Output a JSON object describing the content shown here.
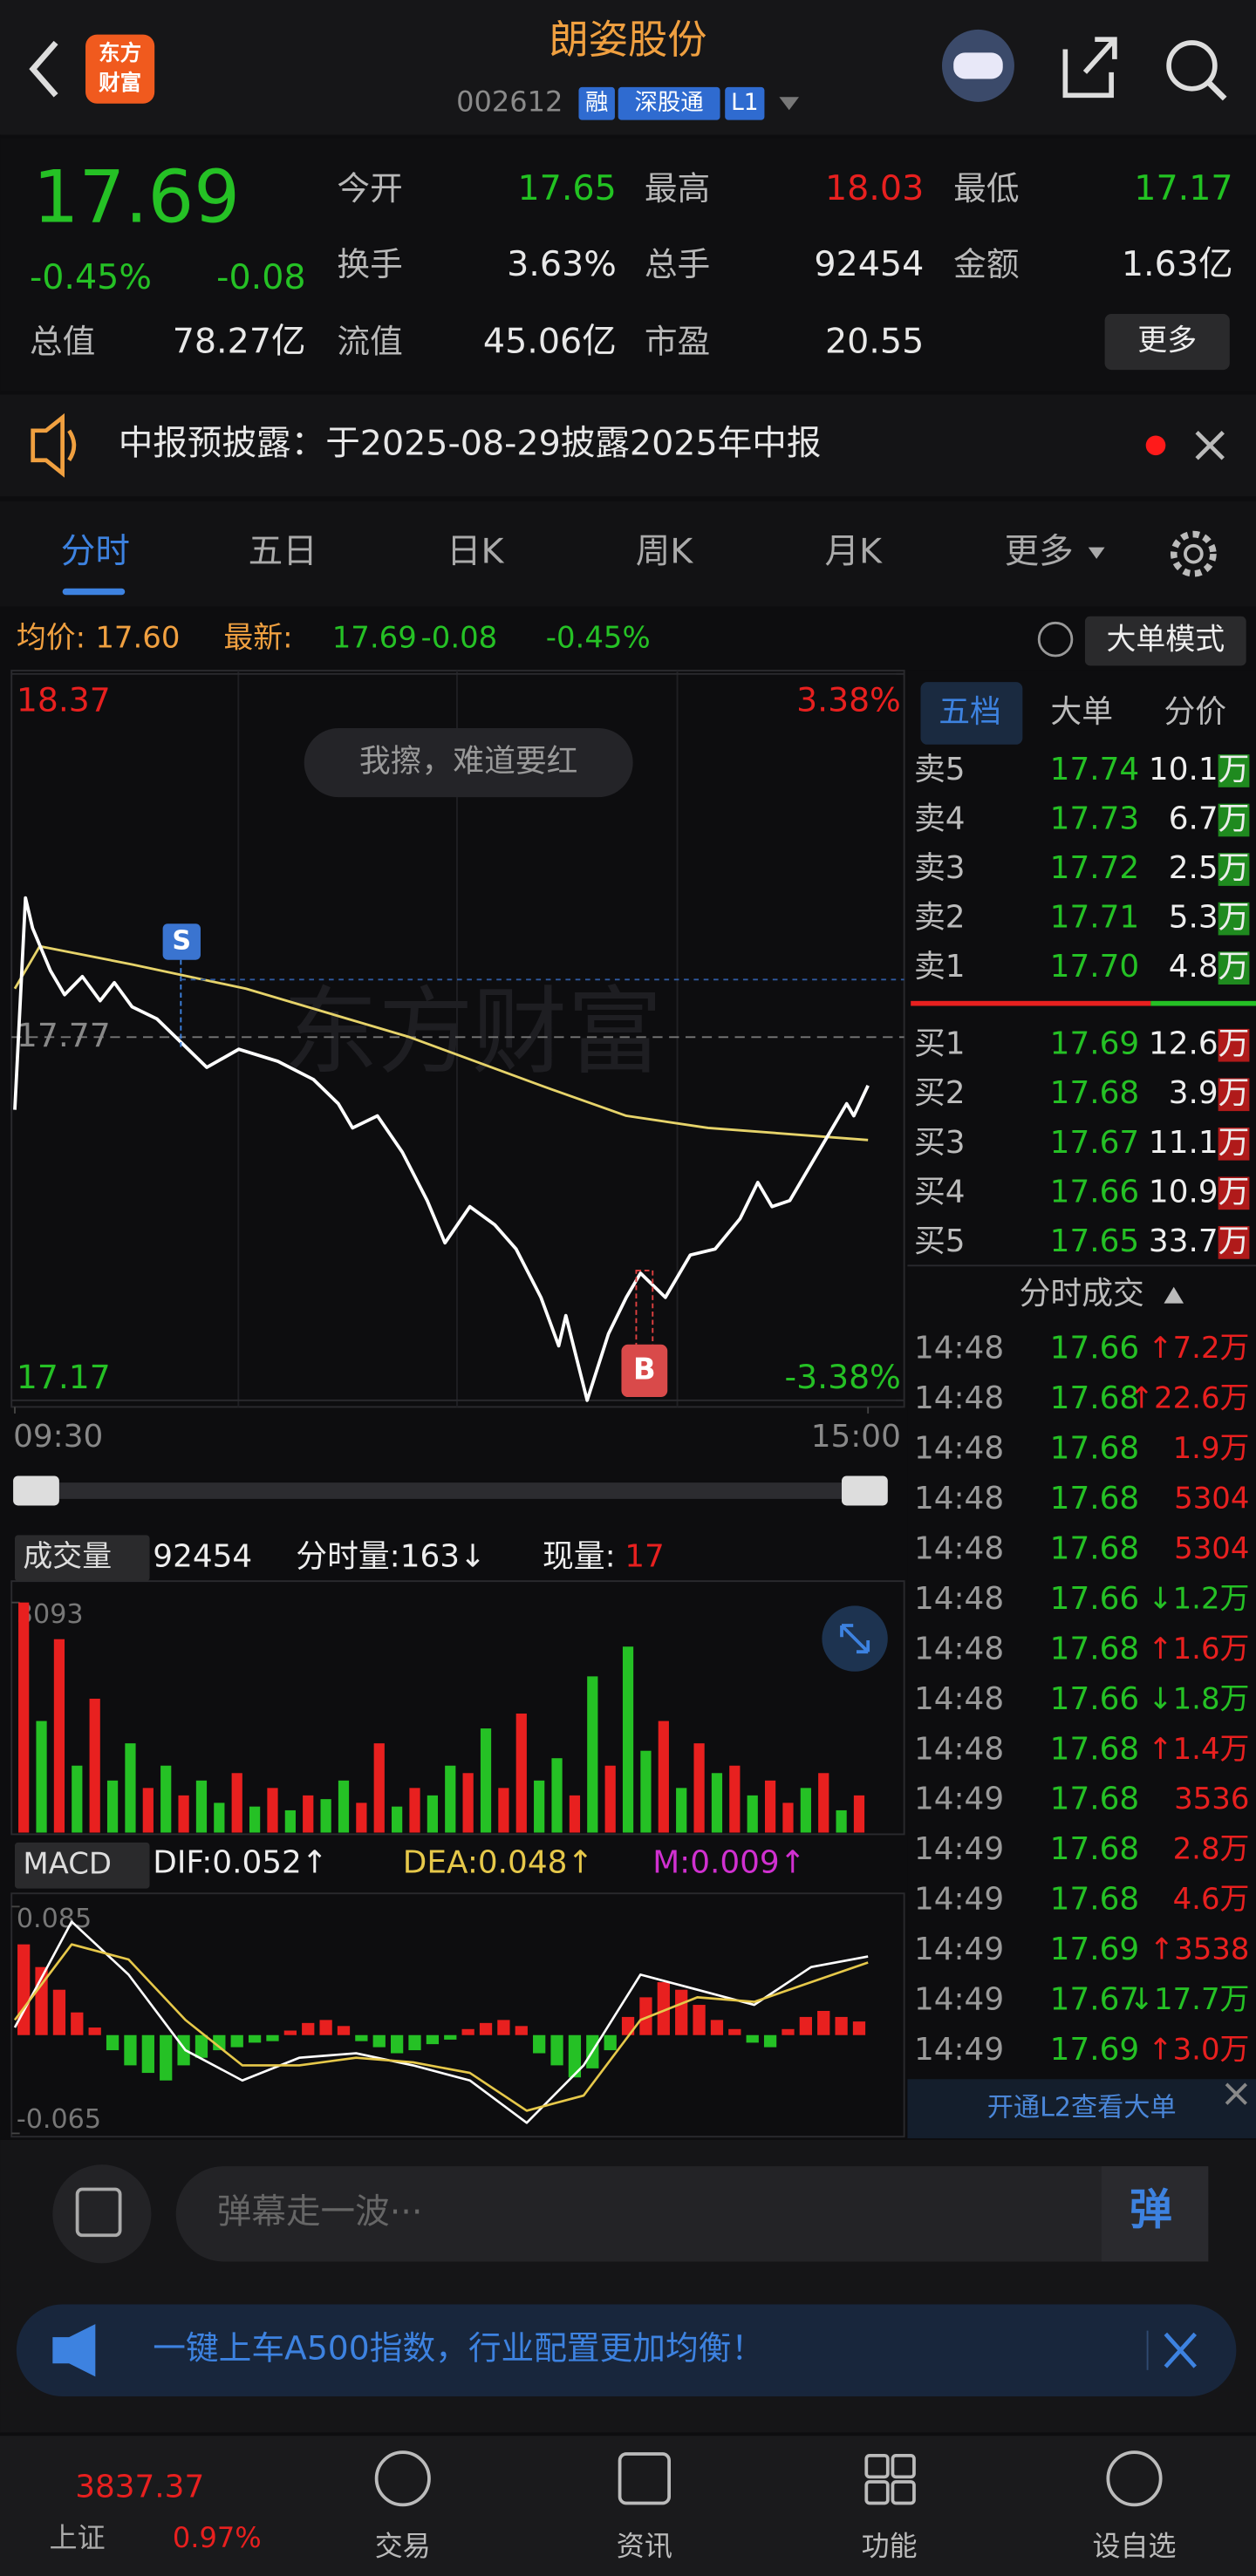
{
  "header": {
    "logo": [
      "东方",
      "财富"
    ],
    "title": "朗姿股份",
    "code": "002612",
    "badges": [
      "融",
      "深股通",
      "L1"
    ]
  },
  "quote": {
    "price": "17.69",
    "change_pct": "-0.45%",
    "change": "-0.08",
    "fields": [
      [
        {
          "label": "今开",
          "value": "17.65",
          "color": "#22c322"
        },
        {
          "label": "最高",
          "value": "18.03",
          "color": "#e8201f"
        },
        {
          "label": "最低",
          "value": "17.17",
          "color": "#22c322"
        }
      ],
      [
        {
          "label": "换手",
          "value": "3.63%"
        },
        {
          "label": "总手",
          "value": "92454"
        },
        {
          "label": "金额",
          "value": "1.63亿"
        }
      ],
      [
        {
          "label": "总值",
          "value": "78.27亿"
        },
        {
          "label": "流值",
          "value": "45.06亿"
        },
        {
          "label": "市盈",
          "value": "20.55"
        }
      ]
    ],
    "more": "更多"
  },
  "notice": "中报预披露：于2025-08-29披露2025年中报",
  "tabs": [
    "分时",
    "五日",
    "日K",
    "周K",
    "月K",
    "更多"
  ],
  "summary": {
    "avg_label": "均价:",
    "avg": "17.60",
    "latest_label": "最新:",
    "latest": "17.69",
    "change": "-0.08",
    "change_pct": "-0.45%",
    "mode": "大单模式"
  },
  "comment_bubble": "我擦，难道要红",
  "markers": {
    "sell": "S",
    "buy": "B"
  },
  "volume_header": {
    "menu": "成交量",
    "total": "92454",
    "minute": "分时量:163↓",
    "current_label": "现量:",
    "current": "17"
  },
  "macd_header": {
    "menu": "MACD",
    "dif": "DIF:0.052↑",
    "dea": "DEA:0.048↑",
    "m": "M:0.009↑"
  },
  "chart_data": [
    {
      "type": "line",
      "xlim": [
        0,
        240
      ],
      "xticks": [
        {
          "value": 0,
          "label": "09:30"
        },
        {
          "value": 240,
          "label": "15:00"
        }
      ],
      "ylim": [
        17.17,
        18.37
      ],
      "yticks": [
        18.37,
        17.77,
        17.17
      ],
      "y2lim": [
        -3.38,
        3.38
      ],
      "y2ticks": [
        {
          "value": 3.38,
          "label": "3.38%"
        },
        {
          "value": -3.38,
          "label": "-3.38%"
        }
      ],
      "series": [
        {
          "color": "#ffffff",
          "x": [
            0,
            3,
            5,
            10,
            14,
            19,
            24,
            28,
            33,
            40,
            47,
            54,
            63,
            74,
            84,
            91,
            95,
            102,
            109,
            116,
            121,
            128,
            135,
            141,
            148,
            153,
            155,
            161,
            167,
            172,
            176,
            183,
            190,
            197,
            204,
            209,
            213,
            218,
            225,
            229,
            234,
            236,
            240
          ],
          "values": [
            17.65,
            18.0,
            17.95,
            17.88,
            17.84,
            17.87,
            17.83,
            17.86,
            17.82,
            17.8,
            17.76,
            17.72,
            17.75,
            17.73,
            17.7,
            17.66,
            17.62,
            17.64,
            17.58,
            17.5,
            17.43,
            17.49,
            17.46,
            17.42,
            17.34,
            17.26,
            17.31,
            17.17,
            17.28,
            17.34,
            17.38,
            17.34,
            17.41,
            17.42,
            17.47,
            17.53,
            17.49,
            17.5,
            17.57,
            17.61,
            17.66,
            17.64,
            17.69
          ]
        },
        {
          "color": "#e6d36a",
          "x": [
            0,
            7,
            33,
            65,
            111,
            148,
            172,
            195,
            240
          ],
          "values": [
            17.85,
            17.92,
            17.89,
            17.85,
            17.77,
            17.69,
            17.64,
            17.62,
            17.6
          ]
        }
      ]
    },
    {
      "type": "bar",
      "ylim": [
        0,
        3093
      ],
      "yticks": [
        3093
      ],
      "values": [
        3093,
        1500,
        2600,
        900,
        1800,
        700,
        1200,
        600,
        900,
        500,
        700,
        400,
        800,
        350,
        600,
        300,
        500,
        450,
        700,
        400,
        1200,
        350,
        600,
        500,
        900,
        800,
        1400,
        600,
        1600,
        700,
        1000,
        500,
        2100,
        900,
        2500,
        1100,
        1500,
        600,
        1200,
        800,
        900,
        500,
        700,
        400,
        600,
        800,
        300,
        500
      ],
      "colors": [
        "#e8201f",
        "#25c125",
        "#e8201f",
        "#25c125",
        "#e8201f",
        "#25c125",
        "#25c125",
        "#e8201f",
        "#25c125",
        "#e8201f",
        "#25c125",
        "#25c125",
        "#e8201f",
        "#25c125",
        "#e8201f",
        "#25c125",
        "#e8201f",
        "#25c125",
        "#25c125",
        "#e8201f",
        "#e8201f",
        "#25c125",
        "#e8201f",
        "#25c125",
        "#25c125",
        "#e8201f",
        "#25c125",
        "#e8201f",
        "#e8201f",
        "#25c125",
        "#25c125",
        "#e8201f",
        "#25c125",
        "#e8201f",
        "#25c125",
        "#25c125",
        "#e8201f",
        "#25c125",
        "#e8201f",
        "#25c125",
        "#e8201f",
        "#25c125",
        "#e8201f",
        "#e8201f",
        "#25c125",
        "#e8201f",
        "#25c125",
        "#e8201f"
      ]
    },
    {
      "type": "combo",
      "ylim": [
        -0.065,
        0.085
      ],
      "yticks": [
        0.085,
        -0.065
      ],
      "up_color": "#e8201f",
      "down_color": "#25c125",
      "values": [
        0.06,
        0.045,
        0.03,
        0.015,
        0.005,
        -0.01,
        -0.02,
        -0.025,
        -0.03,
        -0.02,
        -0.015,
        -0.01,
        -0.008,
        -0.005,
        -0.004,
        0.003,
        0.008,
        0.01,
        0.006,
        -0.004,
        -0.008,
        -0.012,
        -0.01,
        -0.006,
        -0.003,
        0.004,
        0.008,
        0.01,
        0.006,
        -0.012,
        -0.02,
        -0.028,
        -0.022,
        -0.01,
        0.012,
        0.025,
        0.035,
        0.03,
        0.02,
        0.01,
        0.004,
        -0.005,
        -0.008,
        0.004,
        0.012,
        0.016,
        0.012,
        0.009
      ],
      "series": [
        {
          "color": "#ffffff",
          "values": [
            0.005,
            0.075,
            0.04,
            -0.01,
            -0.03,
            -0.015,
            -0.012,
            -0.02,
            -0.03,
            -0.058,
            -0.02,
            0.04,
            0.03,
            0.02,
            0.045,
            0.052
          ]
        },
        {
          "color": "#e6c84a",
          "values": [
            0.01,
            0.06,
            0.05,
            0.01,
            -0.02,
            -0.02,
            -0.015,
            -0.018,
            -0.025,
            -0.05,
            -0.04,
            0.01,
            0.025,
            0.022,
            0.035,
            0.048
          ]
        }
      ]
    }
  ],
  "order_book": {
    "tabs": [
      "五档",
      "大单",
      "分价"
    ],
    "asks": [
      [
        "卖5",
        "17.74",
        "10.1万"
      ],
      [
        "卖4",
        "17.73",
        "6.7万"
      ],
      [
        "卖3",
        "17.72",
        "2.5万"
      ],
      [
        "卖2",
        "17.71",
        "5.3万"
      ],
      [
        "卖1",
        "17.70",
        "4.8万"
      ]
    ],
    "bids": [
      [
        "买1",
        "17.69",
        "12.6万"
      ],
      [
        "买2",
        "17.68",
        "3.9万"
      ],
      [
        "买3",
        "17.67",
        "11.1万"
      ],
      [
        "买4",
        "17.66",
        "10.9万"
      ],
      [
        "买5",
        "17.65",
        "33.7万"
      ]
    ]
  },
  "trades": {
    "title": "分时成交",
    "rows": [
      [
        "14:48",
        "17.66",
        "↑7.2万"
      ],
      [
        "14:48",
        "17.68",
        "↑22.6万"
      ],
      [
        "14:48",
        "17.68",
        "1.9万"
      ],
      [
        "14:48",
        "17.68",
        "5304"
      ],
      [
        "14:48",
        "17.68",
        "5304"
      ],
      [
        "14:48",
        "17.66",
        "↓1.2万"
      ],
      [
        "14:48",
        "17.68",
        "↑1.6万"
      ],
      [
        "14:48",
        "17.66",
        "↓1.8万"
      ],
      [
        "14:48",
        "17.68",
        "↑1.4万"
      ],
      [
        "14:49",
        "17.68",
        "3536"
      ],
      [
        "14:49",
        "17.68",
        "2.8万"
      ],
      [
        "14:49",
        "17.68",
        "4.6万"
      ],
      [
        "14:49",
        "17.69",
        "↑3538"
      ],
      [
        "14:49",
        "17.67",
        "↓17.7万"
      ],
      [
        "14:49",
        "17.69",
        "↑3.0万"
      ]
    ],
    "colors": [
      "#e8201f",
      "#e8201f",
      "#e8201f",
      "#e8201f",
      "#e8201f",
      "#25c125",
      "#e8201f",
      "#25c125",
      "#e8201f",
      "#e8201f",
      "#e8201f",
      "#e8201f",
      "#e8201f",
      "#25c125",
      "#e8201f"
    ]
  },
  "trades_promo": "开通L2查看大单",
  "input_placeholder": "弹幕走一波···",
  "danmaku_button": "弹",
  "banner": "一键上车A500指数，行业配置更加均衡！",
  "nav": {
    "index_value": "3837.37",
    "index_name": "上证",
    "index_change": "0.97%",
    "items": [
      "交易",
      "资讯",
      "功能",
      "设自选"
    ]
  }
}
